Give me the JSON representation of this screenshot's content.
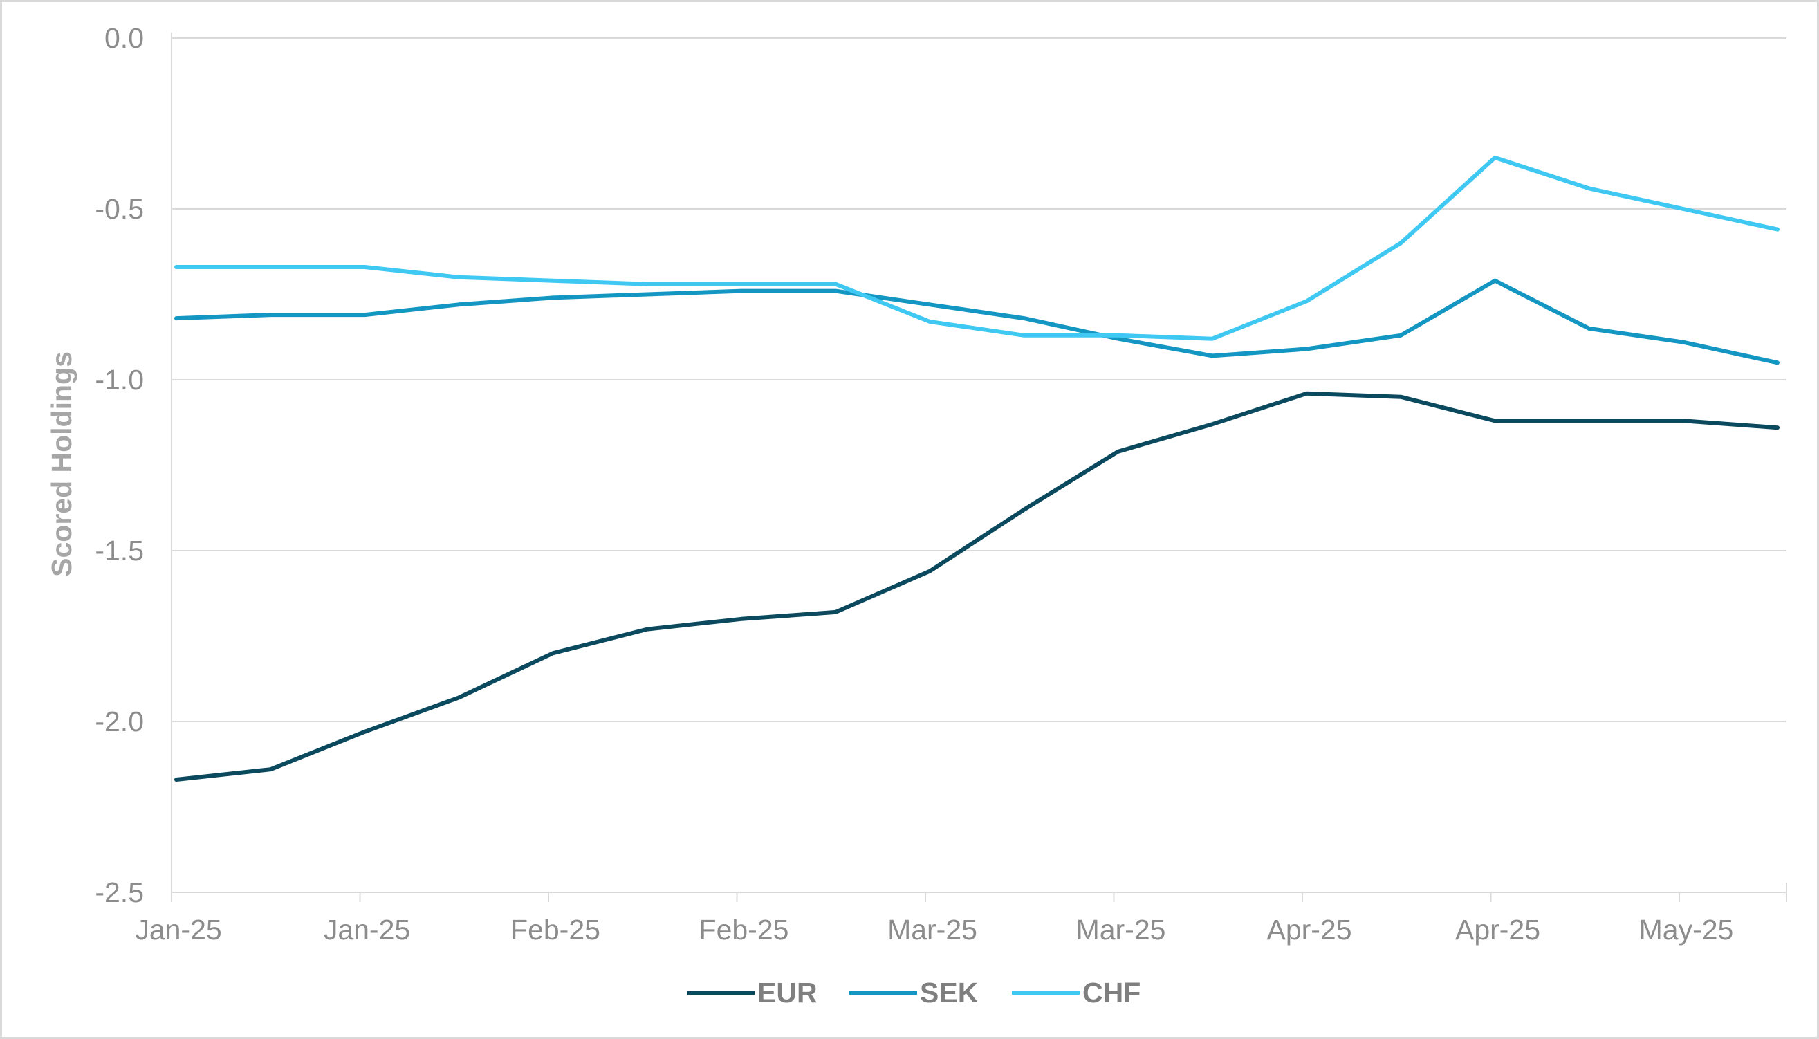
{
  "chart_data": {
    "type": "line",
    "title": "",
    "xlabel": "",
    "ylabel": "Scored Holdings",
    "ylim": [
      -2.5,
      0.0
    ],
    "y_ticks": [
      0.0,
      -0.5,
      -1.0,
      -1.5,
      -2.0,
      -2.5
    ],
    "y_tick_labels": [
      "0.0",
      "-0.5",
      "-1.0",
      "-1.5",
      "-2.0",
      "-2.5"
    ],
    "x_tick_labels": [
      "Jan-25",
      "Jan-25",
      "Feb-25",
      "Feb-25",
      "Mar-25",
      "Mar-25",
      "Apr-25",
      "Apr-25",
      "May-25"
    ],
    "grid": true,
    "legend": "bottom",
    "series": [
      {
        "name": "EUR",
        "color": "#0b4a5e",
        "values": [
          -2.17,
          -2.14,
          -2.03,
          -1.93,
          -1.8,
          -1.73,
          -1.7,
          -1.68,
          -1.56,
          -1.38,
          -1.21,
          -1.13,
          -1.04,
          -1.05,
          -1.12,
          -1.12,
          -1.12,
          -1.14
        ]
      },
      {
        "name": "SEK",
        "color": "#1396c2",
        "values": [
          -0.82,
          -0.81,
          -0.81,
          -0.78,
          -0.76,
          -0.75,
          -0.74,
          -0.74,
          -0.78,
          -0.82,
          -0.88,
          -0.93,
          -0.91,
          -0.87,
          -0.71,
          -0.85,
          -0.89,
          -0.95
        ]
      },
      {
        "name": "CHF",
        "color": "#3ec8f2",
        "values": [
          -0.67,
          -0.67,
          -0.67,
          -0.7,
          -0.71,
          -0.72,
          -0.72,
          -0.72,
          -0.83,
          -0.87,
          -0.87,
          -0.88,
          -0.77,
          -0.6,
          -0.35,
          -0.44,
          -0.5,
          -0.56
        ]
      }
    ]
  }
}
